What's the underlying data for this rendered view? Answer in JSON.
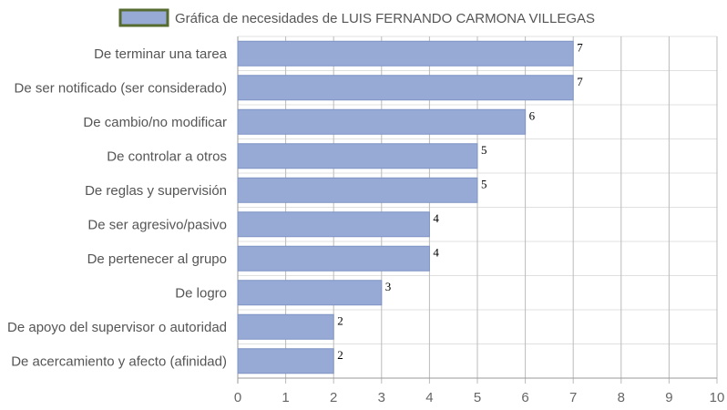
{
  "chart_data": {
    "type": "bar",
    "orientation": "horizontal",
    "categories": [
      "De terminar una tarea",
      "De ser notificado (ser considerado)",
      "De cambio/no modificar",
      "De controlar a otros",
      "De reglas y supervisión",
      "De ser agresivo/pasivo",
      "De pertenecer al grupo",
      "De logro",
      "De apoyo del supervisor o autoridad",
      "De acercamiento y afecto (afinidad)"
    ],
    "series": [
      {
        "name": "Gráfica de necesidades de LUIS FERNANDO CARMONA VILLEGAS",
        "values": [
          7,
          7,
          6,
          5,
          5,
          4,
          4,
          3,
          2,
          2
        ]
      }
    ],
    "xlim": [
      0,
      10
    ],
    "x_ticks": [
      0,
      1,
      2,
      3,
      4,
      5,
      6,
      7,
      8,
      9,
      10
    ],
    "title": "",
    "xlabel": "",
    "ylabel": "",
    "legend_position": "top",
    "grid": true,
    "colors": {
      "bar_fill": "#97AAD6",
      "bar_stroke": "#7F93C4",
      "legend_border": "#556B2F",
      "grid": "#E0E0E0",
      "grid_major": "#BBBBBB",
      "axis": "#999999"
    }
  }
}
